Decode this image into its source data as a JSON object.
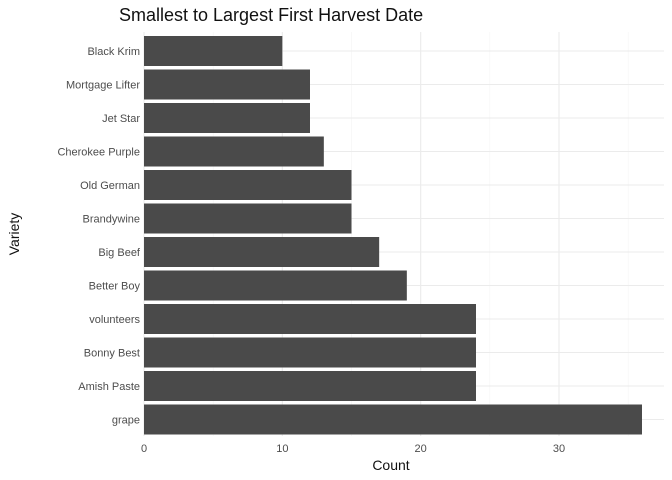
{
  "chart_data": {
    "type": "bar",
    "orientation": "horizontal",
    "title": "Smallest to Largest First Harvest Date",
    "xlabel": "Count",
    "ylabel": "Variety",
    "categories": [
      "Black Krim",
      "Mortgage Lifter",
      "Jet Star",
      "Cherokee Purple",
      "Old German",
      "Brandywine",
      "Big Beef",
      "Better Boy",
      "volunteers",
      "Bonny Best",
      "Amish Paste",
      "grape"
    ],
    "values": [
      10,
      12,
      12,
      13,
      15,
      15,
      17,
      19,
      24,
      24,
      24,
      36
    ],
    "xlim": [
      0,
      36
    ],
    "x_ticks": [
      0,
      10,
      20,
      30
    ],
    "grid": true,
    "legend": "none",
    "bar_color": "#4a4a4a",
    "grid_color": "#ebebeb"
  }
}
